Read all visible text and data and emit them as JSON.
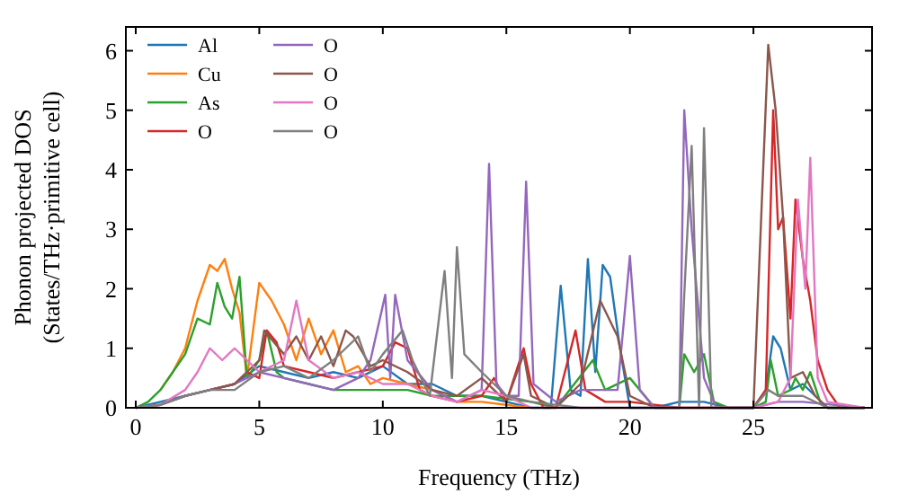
{
  "chart_data": {
    "type": "line",
    "xlabel": "Frequency (THz)",
    "ylabel": "Phonon projected DOS\n(States/THz·primitive cell)",
    "xlim": [
      -0.4,
      29.8
    ],
    "ylim": [
      0,
      6.4
    ],
    "xticks": [
      0,
      5,
      10,
      15,
      20,
      25
    ],
    "yticks": [
      0,
      1,
      2,
      3,
      4,
      5,
      6
    ],
    "grid": false,
    "legend": "top left",
    "line_style": "solid",
    "marker": "none",
    "series": [
      {
        "name": "Al",
        "color": "#1f77b4",
        "x": [
          0,
          1,
          2,
          3,
          4,
          5,
          6,
          7,
          8,
          9,
          10,
          11,
          12,
          13,
          14,
          15,
          16,
          16.8,
          17.2,
          17.6,
          18,
          18.3,
          18.6,
          18.9,
          19.2,
          19.6,
          20,
          21,
          22,
          23,
          24,
          25,
          25.5,
          25.8,
          26.1,
          26.5,
          27,
          27.5,
          28,
          29.5
        ],
        "values": [
          0,
          0.1,
          0.2,
          0.3,
          0.4,
          0.7,
          0.6,
          0.5,
          0.6,
          0.5,
          0.7,
          0.4,
          0.4,
          0.2,
          0.2,
          0.1,
          0,
          0,
          2.05,
          0.3,
          0.2,
          2.5,
          0.6,
          2.4,
          2.2,
          1,
          0,
          0,
          0.1,
          0.1,
          0,
          0,
          0.3,
          1.2,
          1,
          0.3,
          0.4,
          0.2,
          0,
          0
        ]
      },
      {
        "name": "Cu",
        "color": "#ff7f0e",
        "x": [
          1,
          1.5,
          2,
          2.5,
          3,
          3.3,
          3.6,
          3.9,
          4.2,
          4.5,
          5,
          5.5,
          6,
          6.5,
          7,
          7.5,
          8,
          8.5,
          9,
          9.5,
          10,
          11,
          12,
          13,
          14,
          15,
          16
        ],
        "values": [
          0.3,
          0.6,
          1,
          1.8,
          2.4,
          2.3,
          2.5,
          2,
          1.6,
          0.5,
          2.1,
          1.8,
          1.4,
          0.8,
          1.5,
          0.9,
          1.3,
          0.6,
          0.7,
          0.4,
          0.5,
          0.4,
          0.3,
          0.1,
          0.1,
          0.05,
          0
        ]
      },
      {
        "name": "As",
        "color": "#2ca02c",
        "x": [
          0,
          0.5,
          1,
          1.5,
          2,
          2.5,
          3,
          3.3,
          3.6,
          3.9,
          4.2,
          4.5,
          5,
          5.3,
          5.7,
          6,
          7,
          8,
          9,
          10,
          11,
          12,
          14,
          16,
          17,
          18.5,
          19,
          20,
          21,
          22,
          22.2,
          22.6,
          23,
          23.4,
          24,
          25,
          25.5,
          25.7,
          26,
          26.5,
          26.7,
          27,
          27.3,
          27.7,
          28,
          29.5
        ],
        "values": [
          0,
          0.1,
          0.3,
          0.6,
          0.9,
          1.5,
          1.4,
          2.1,
          1.7,
          1.5,
          2.2,
          0.5,
          0.8,
          1.3,
          0.6,
          0.5,
          0.4,
          0.3,
          0.3,
          0.3,
          0.3,
          0.2,
          0.2,
          0.1,
          0,
          0.8,
          0.3,
          0.5,
          0,
          0,
          0.9,
          0.6,
          0.9,
          0.1,
          0,
          0,
          0.1,
          0.8,
          0.2,
          0.3,
          0.5,
          0.3,
          0.6,
          0.1,
          0,
          0
        ]
      },
      {
        "name": "O",
        "color": "#d62728",
        "x": [
          3,
          4,
          4.5,
          5,
          5.3,
          5.7,
          6,
          7,
          8,
          9,
          10,
          10.5,
          11,
          11.5,
          12,
          13,
          14,
          14.5,
          15,
          15.7,
          16,
          16.5,
          17,
          17.8,
          18.2,
          19,
          20,
          22,
          23,
          24,
          25,
          25.5,
          25.8,
          26,
          26.2,
          26.5,
          26.7,
          27,
          27.3,
          27.6,
          28,
          28.5,
          29.5
        ],
        "values": [
          0.3,
          0.4,
          0.6,
          0.5,
          1.3,
          1.1,
          0.7,
          0.6,
          0.5,
          0.6,
          0.7,
          1.1,
          1,
          0.3,
          0.2,
          0.1,
          0.2,
          0.5,
          0.1,
          1,
          0.4,
          0,
          0,
          1.3,
          0.3,
          0.1,
          0.1,
          0,
          0,
          0,
          0,
          0.3,
          5,
          3,
          3.2,
          1.5,
          3.5,
          2.5,
          1.8,
          0.8,
          0.3,
          0,
          0
        ]
      },
      {
        "name": "O",
        "color": "#9467bd",
        "x": [
          0,
          1,
          2,
          3,
          4,
          5,
          6,
          7,
          8,
          9,
          9.5,
          10.1,
          10.3,
          10.5,
          11,
          12,
          13,
          14,
          14.3,
          14.6,
          15,
          15.5,
          15.8,
          16.1,
          17,
          18,
          19,
          19.5,
          20,
          20.4,
          21,
          22,
          22.2,
          22.5,
          23,
          23.5,
          24,
          25,
          26,
          27,
          29.5
        ],
        "values": [
          0,
          0.05,
          0.2,
          0.3,
          0.4,
          0.6,
          0.5,
          0.4,
          0.3,
          0.5,
          0.8,
          1.9,
          0.5,
          1.9,
          0.8,
          0.3,
          0.1,
          0.3,
          4.1,
          0.4,
          0.2,
          0.2,
          3.8,
          0.4,
          0.1,
          0.3,
          0.3,
          0.3,
          2.55,
          0.3,
          0,
          0,
          5,
          3,
          0.5,
          0,
          0,
          0,
          0.1,
          0.1,
          0
        ]
      },
      {
        "name": "O",
        "color": "#8c564b",
        "x": [
          0,
          1,
          2,
          3,
          4,
          5,
          5.2,
          6,
          6.5,
          7,
          7.5,
          8,
          8.5,
          8.8,
          9.5,
          10,
          11,
          12,
          13,
          14,
          15,
          15.7,
          16,
          17,
          18,
          18.8,
          19.5,
          20,
          21,
          24,
          25,
          25.6,
          25.9,
          26.2,
          26.5,
          27,
          27.5,
          28,
          29.5
        ],
        "values": [
          0,
          0.05,
          0.2,
          0.3,
          0.4,
          0.8,
          1.3,
          0.9,
          1.2,
          0.8,
          1.2,
          0.7,
          1.3,
          1.2,
          0.7,
          0.8,
          0.6,
          0.3,
          0.2,
          0.5,
          0.1,
          0.9,
          0.2,
          0,
          0.4,
          1.8,
          1.2,
          0.2,
          0,
          0,
          0,
          6.1,
          5,
          3.2,
          0.5,
          0.6,
          0.2,
          0,
          0
        ]
      },
      {
        "name": "O",
        "color": "#e377c2",
        "x": [
          0,
          1,
          2,
          2.5,
          3,
          3.5,
          4,
          5,
          6,
          6.5,
          7,
          8,
          9,
          10,
          11,
          12,
          13,
          14,
          15,
          16,
          20,
          25,
          26,
          26.5,
          26.8,
          27.1,
          27.3,
          27.6,
          28,
          29.5
        ],
        "values": [
          0,
          0.05,
          0.3,
          0.6,
          1,
          0.8,
          1,
          0.6,
          0.8,
          1.8,
          0.8,
          0.5,
          0.6,
          0.4,
          0.4,
          0.2,
          0.1,
          0.3,
          0.2,
          0,
          0,
          0,
          0.1,
          0.5,
          3.5,
          2,
          4.2,
          0.5,
          0.1,
          0
        ]
      },
      {
        "name": "O",
        "color": "#7f7f7f",
        "x": [
          0,
          1,
          2,
          3,
          4,
          5,
          6,
          7,
          8,
          9,
          9.5,
          10,
          10.8,
          11.2,
          11.9,
          12.5,
          12.8,
          13,
          13.3,
          14,
          15,
          16,
          18,
          20,
          21,
          22,
          22.2,
          22.5,
          22.8,
          23,
          23.3,
          24,
          25,
          25.6,
          26,
          27,
          28,
          29.5
        ],
        "values": [
          0,
          0.05,
          0.2,
          0.3,
          0.3,
          0.6,
          0.7,
          0.5,
          0.8,
          1.2,
          0.6,
          0.9,
          1.3,
          0.8,
          0.2,
          2.3,
          0.5,
          2.7,
          0.9,
          0.6,
          0.2,
          0.1,
          0,
          0,
          0,
          0,
          1.9,
          4.4,
          0,
          4.7,
          0,
          0,
          0,
          0.3,
          0.2,
          0.2,
          0,
          0
        ]
      }
    ]
  }
}
